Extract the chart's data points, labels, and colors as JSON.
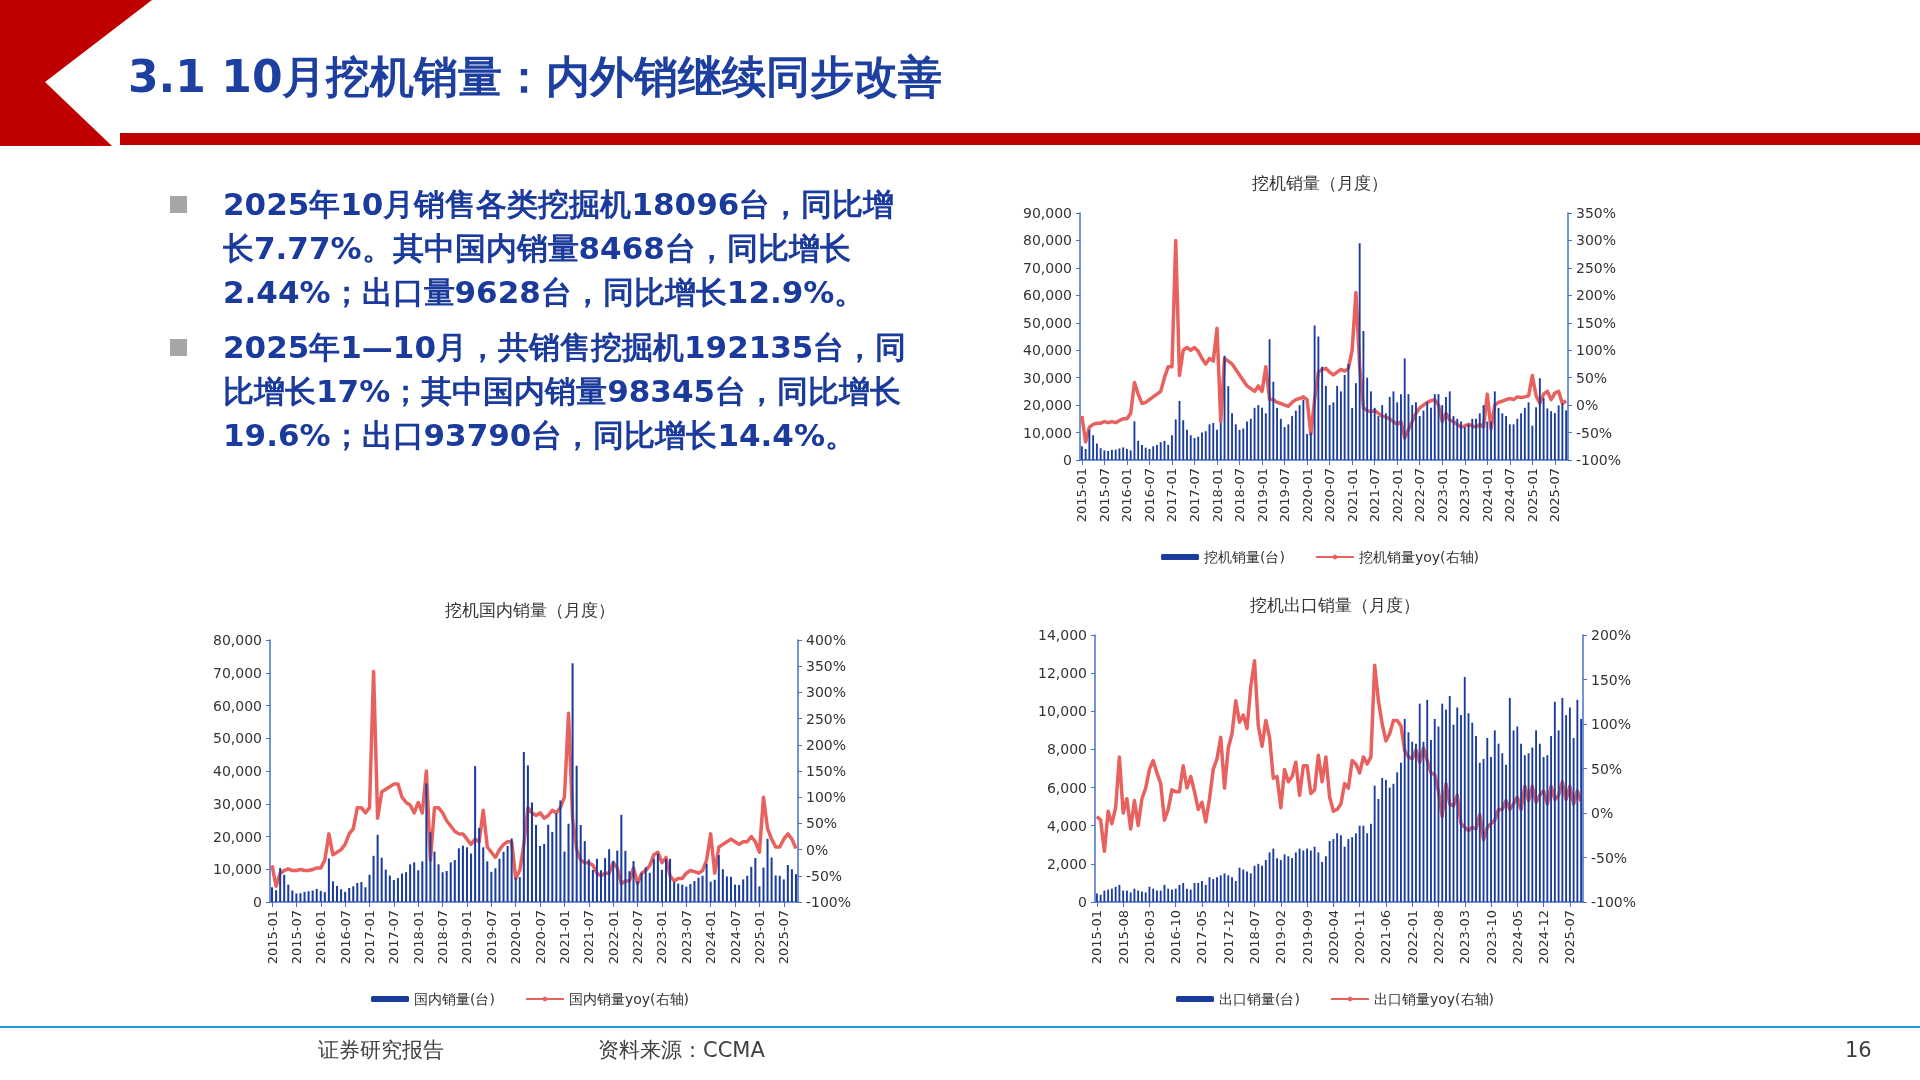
{
  "chart_data": [
    {
      "type": "other",
      "title": "3.1 10月挖机销量：内外销继续同步改善",
      "annotations": [
        "2025年10月销售各类挖掘机18096台，同比增长7.77%。其中国内销量8468台，同比增长2.44%；出口量9628台，同比增长12.9%。",
        "2025年1—10月，共销售挖掘机192135台，同比增长17%；其中国内销量98345台，同比增长19.6%；出口93790台，同比增长14.4%。",
        "证券研究报告",
        "资料来源：CCMA",
        "16"
      ]
    },
    {
      "type": "bar",
      "title": "挖机销量（月度）",
      "legend": "bottom",
      "marker": "none",
      "grid": false,
      "categories": [
        "2015-01",
        null,
        null,
        null,
        null,
        null,
        "2015-07",
        null,
        null,
        null,
        null,
        null,
        "2016-01",
        null,
        null,
        null,
        null,
        null,
        "2016-07",
        null,
        null,
        null,
        null,
        null,
        "2017-01",
        null,
        null,
        null,
        null,
        null,
        "2017-07",
        null,
        null,
        null,
        null,
        null,
        "2018-01",
        null,
        null,
        null,
        null,
        null,
        "2018-07",
        null,
        null,
        null,
        null,
        null,
        "2019-01",
        null,
        null,
        null,
        null,
        null,
        "2019-07",
        null,
        null,
        null,
        null,
        null,
        "2020-01",
        null,
        null,
        null,
        null,
        null,
        "2020-07",
        null,
        null,
        null,
        null,
        null,
        "2021-01",
        null,
        null,
        null,
        null,
        null,
        "2021-07",
        null,
        null,
        null,
        null,
        null,
        "2022-01",
        null,
        null,
        null,
        null,
        null,
        "2022-07",
        null,
        null,
        null,
        null,
        null,
        "2023-01",
        null,
        null,
        null,
        null,
        null,
        "2023-07",
        null,
        null,
        null,
        null,
        null,
        "2024-01",
        null,
        null,
        null,
        null,
        null,
        "2024-07",
        null,
        null,
        null,
        null,
        null,
        "2025-01",
        null,
        null,
        null,
        null,
        null,
        "2025-07",
        null,
        null,
        null
      ],
      "ylim": [
        0,
        90000
      ],
      "yticks": [
        {
          "value": 0,
          "label": "0"
        },
        {
          "value": 10000,
          "label": "10,000"
        },
        {
          "value": 20000,
          "label": "20,000"
        },
        {
          "value": 30000,
          "label": "30,000"
        },
        {
          "value": 40000,
          "label": "40,000"
        },
        {
          "value": 50000,
          "label": "50,000"
        },
        {
          "value": 60000,
          "label": "60,000"
        },
        {
          "value": 70000,
          "label": "70,000"
        },
        {
          "value": 80000,
          "label": "80,000"
        },
        {
          "value": 90000,
          "label": "90,000"
        }
      ],
      "y2lim": [
        -100,
        350
      ],
      "y2ticks": [
        {
          "value": -100,
          "label": "-100%"
        },
        {
          "value": -50,
          "label": "-50%"
        },
        {
          "value": 0,
          "label": "0%"
        },
        {
          "value": 50,
          "label": "50%"
        },
        {
          "value": 100,
          "label": "100%"
        },
        {
          "value": 150,
          "label": "150%"
        },
        {
          "value": 200,
          "label": "200%"
        },
        {
          "value": 250,
          "label": "250%"
        },
        {
          "value": 300,
          "label": "300%"
        },
        {
          "value": 350,
          "label": "350%"
        }
      ],
      "series": [
        {
          "name": "挖机销量(台)",
          "type": "bar",
          "color": "#1b3c9e",
          "values": [
            5000,
            4000,
            11000,
            9000,
            6000,
            4300,
            3500,
            3300,
            3700,
            3800,
            4200,
            4600,
            4000,
            3500,
            14100,
            7000,
            5500,
            4500,
            4000,
            5000,
            5500,
            6500,
            7000,
            5500,
            9000,
            14800,
            21500,
            14500,
            11000,
            9000,
            8000,
            8500,
            10000,
            10500,
            13000,
            13500,
            11000,
            13500,
            38000,
            26900,
            17000,
            13000,
            11000,
            11500,
            14000,
            15000,
            19000,
            20000,
            19000,
            17000,
            44000,
            28500,
            19000,
            15000,
            12000,
            13000,
            16000,
            18000,
            20000,
            22000,
            9500,
            10000,
            49000,
            45000,
            34000,
            27000,
            20000,
            21000,
            27000,
            25000,
            31000,
            35000,
            19000,
            28000,
            79000,
            47000,
            30000,
            25000,
            19000,
            16000,
            20000,
            17000,
            23000,
            25000,
            21000,
            24000,
            37000,
            24000,
            20000,
            21000,
            16000,
            18000,
            21000,
            19000,
            24000,
            24000,
            20000,
            23000,
            25000,
            16000,
            15000,
            14000,
            12000,
            13000,
            15000,
            15000,
            17000,
            20000,
            14000,
            14000,
            25000,
            19000,
            17000,
            16000,
            13000,
            13000,
            15000,
            17000,
            19000,
            21000,
            12500,
            19200,
            29800,
            22600,
            18800,
            17800,
            17100,
            19900,
            20600,
            18100
          ]
        },
        {
          "name": "挖机销量yoy(右轴)",
          "type": "line",
          "axis": "y2",
          "color": "#e8615e",
          "values": [
            -20,
            -67,
            -40,
            -35,
            -33,
            -33,
            -30,
            -32,
            -30,
            -32,
            -28,
            -25,
            -25,
            -15,
            41,
            20,
            3,
            5,
            10,
            15,
            20,
            25,
            50,
            70,
            70,
            300,
            54,
            100,
            105,
            100,
            105,
            98,
            85,
            75,
            85,
            80,
            140,
            -30,
            85,
            80,
            75,
            65,
            55,
            45,
            35,
            30,
            25,
            35,
            25,
            70,
            10,
            10,
            5,
            3,
            0,
            -2,
            5,
            10,
            12,
            15,
            10,
            -53,
            10,
            60,
            65,
            67,
            60,
            55,
            60,
            65,
            62,
            67,
            100,
            205,
            70,
            -5,
            -10,
            -12,
            -10,
            -15,
            -20,
            -22,
            -25,
            -30,
            -35,
            -30,
            -60,
            -45,
            -30,
            -15,
            -5,
            0,
            5,
            8,
            10,
            0,
            -30,
            -15,
            -27,
            -30,
            -35,
            -40,
            -38,
            -35,
            -38,
            -40,
            -35,
            -40,
            20,
            -43,
            0,
            5,
            7,
            10,
            12,
            10,
            15,
            14,
            15,
            17,
            54,
            17,
            3,
            20,
            25,
            10,
            22,
            25,
            3,
            8
          ]
        }
      ]
    },
    {
      "type": "bar",
      "title": "挖机国内销量（月度）",
      "legend": "bottom",
      "marker": "none",
      "grid": false,
      "categories": [
        "2015-01",
        null,
        null,
        null,
        null,
        null,
        "2015-07",
        null,
        null,
        null,
        null,
        null,
        "2016-01",
        null,
        null,
        null,
        null,
        null,
        "2016-07",
        null,
        null,
        null,
        null,
        null,
        "2017-01",
        null,
        null,
        null,
        null,
        null,
        "2017-07",
        null,
        null,
        null,
        null,
        null,
        "2018-01",
        null,
        null,
        null,
        null,
        null,
        "2018-07",
        null,
        null,
        null,
        null,
        null,
        "2019-01",
        null,
        null,
        null,
        null,
        null,
        "2019-07",
        null,
        null,
        null,
        null,
        null,
        "2020-01",
        null,
        null,
        null,
        null,
        null,
        "2020-07",
        null,
        null,
        null,
        null,
        null,
        "2021-01",
        null,
        null,
        null,
        null,
        null,
        "2021-07",
        null,
        null,
        null,
        null,
        null,
        "2022-01",
        null,
        null,
        null,
        null,
        null,
        "2022-07",
        null,
        null,
        null,
        null,
        null,
        "2023-01",
        null,
        null,
        null,
        null,
        null,
        "2023-07",
        null,
        null,
        null,
        null,
        null,
        "2024-01",
        null,
        null,
        null,
        null,
        null,
        "2024-07",
        null,
        null,
        null,
        null,
        null,
        "2025-01",
        null,
        null,
        null,
        null,
        null,
        "2025-07",
        null,
        null,
        null
      ],
      "ylim": [
        0,
        80000
      ],
      "yticks": [
        {
          "value": 0,
          "label": "0"
        },
        {
          "value": 10000,
          "label": "10,000"
        },
        {
          "value": 20000,
          "label": "20,000"
        },
        {
          "value": 30000,
          "label": "30,000"
        },
        {
          "value": 40000,
          "label": "40,000"
        },
        {
          "value": 50000,
          "label": "50,000"
        },
        {
          "value": 60000,
          "label": "60,000"
        },
        {
          "value": 70000,
          "label": "70,000"
        },
        {
          "value": 80000,
          "label": "80,000"
        }
      ],
      "y2lim": [
        -100,
        400
      ],
      "y2ticks": [
        {
          "value": -100,
          "label": "-100%"
        },
        {
          "value": -50,
          "label": "-50%"
        },
        {
          "value": 0,
          "label": "0%"
        },
        {
          "value": 50,
          "label": "50%"
        },
        {
          "value": 100,
          "label": "100%"
        },
        {
          "value": 150,
          "label": "150%"
        },
        {
          "value": 200,
          "label": "200%"
        },
        {
          "value": 250,
          "label": "250%"
        },
        {
          "value": 300,
          "label": "300%"
        },
        {
          "value": 350,
          "label": "350%"
        },
        {
          "value": 400,
          "label": "400%"
        }
      ],
      "series": [
        {
          "name": "国内销量(台)",
          "type": "bar",
          "color": "#1b3c9e",
          "values": [
            4500,
            3600,
            10400,
            8300,
            5300,
            3500,
            2600,
            2700,
            3100,
            3300,
            3500,
            4000,
            3400,
            3000,
            13300,
            6300,
            4900,
            3900,
            3100,
            4300,
            4800,
            5800,
            6100,
            4500,
            8300,
            14100,
            20500,
            13500,
            9900,
            8100,
            6700,
            7300,
            8700,
            9100,
            11500,
            12100,
            9700,
            12400,
            36200,
            21300,
            15400,
            11500,
            9100,
            9500,
            12100,
            12800,
            16400,
            17200,
            16700,
            14800,
            41500,
            22600,
            16700,
            12400,
            9200,
            10300,
            13200,
            15300,
            17100,
            19400,
            7400,
            7600,
            45800,
            41700,
            30400,
            23500,
            17100,
            17700,
            23600,
            21400,
            27000,
            31000,
            15400,
            23900,
            72900,
            41600,
            23500,
            18600,
            13000,
            9800,
            13200,
            9700,
            13400,
            16100,
            12600,
            15700,
            26600,
            15600,
            9400,
            12500,
            6400,
            8800,
            10600,
            8900,
            13200,
            14700,
            9800,
            13200,
            13200,
            6100,
            5600,
            5300,
            4700,
            5500,
            6400,
            7400,
            8000,
            11700,
            6200,
            6800,
            14300,
            10000,
            7800,
            7700,
            5300,
            5200,
            6900,
            8000,
            10700,
            13400,
            4800,
            10500,
            19300,
            13600,
            8100,
            8000,
            6900,
            11300,
            10000,
            8500
          ]
        },
        {
          "name": "国内销量yoy(右轴)",
          "type": "line",
          "axis": "y2",
          "color": "#e8615e",
          "values": [
            -30,
            -70,
            -45,
            -40,
            -37,
            -40,
            -40,
            -38,
            -40,
            -40,
            -38,
            -35,
            -35,
            -20,
            30,
            -10,
            -5,
            0,
            10,
            30,
            40,
            80,
            80,
            70,
            80,
            340,
            60,
            110,
            115,
            120,
            125,
            125,
            100,
            90,
            85,
            70,
            90,
            70,
            150,
            -20,
            80,
            80,
            70,
            55,
            45,
            35,
            30,
            30,
            20,
            10,
            20,
            15,
            75,
            5,
            -5,
            -15,
            0,
            10,
            15,
            15,
            -55,
            -40,
            10,
            80,
            70,
            65,
            70,
            60,
            65,
            75,
            70,
            80,
            100,
            260,
            60,
            0,
            -20,
            -25,
            -25,
            -30,
            -45,
            -50,
            -45,
            -45,
            -25,
            -35,
            -65,
            -60,
            -60,
            -35,
            -65,
            -45,
            -40,
            -30,
            -10,
            -5,
            -25,
            -15,
            -50,
            -60,
            -55,
            -55,
            -45,
            -40,
            -42,
            -45,
            -40,
            -20,
            30,
            -45,
            5,
            10,
            15,
            20,
            15,
            10,
            15,
            15,
            25,
            15,
            -5,
            100,
            40,
            20,
            5,
            5,
            20,
            30,
            20,
            2
          ]
        }
      ]
    },
    {
      "type": "bar",
      "title": "挖机出口销量（月度）",
      "legend": "bottom",
      "marker": "none",
      "grid": false,
      "categories": [
        "2015-01",
        null,
        null,
        null,
        null,
        null,
        null,
        "2015-08",
        null,
        null,
        null,
        null,
        null,
        null,
        "2016-03",
        null,
        null,
        null,
        null,
        null,
        null,
        "2016-10",
        null,
        null,
        null,
        null,
        null,
        null,
        "2017-05",
        null,
        null,
        null,
        null,
        null,
        null,
        "2017-12",
        null,
        null,
        null,
        null,
        null,
        null,
        "2018-07",
        null,
        null,
        null,
        null,
        null,
        null,
        "2019-02",
        null,
        null,
        null,
        null,
        null,
        null,
        "2019-09",
        null,
        null,
        null,
        null,
        null,
        null,
        "2020-04",
        null,
        null,
        null,
        null,
        null,
        null,
        "2020-11",
        null,
        null,
        null,
        null,
        null,
        null,
        "2021-06",
        null,
        null,
        null,
        null,
        null,
        null,
        "2022-01",
        null,
        null,
        null,
        null,
        null,
        null,
        "2022-08",
        null,
        null,
        null,
        null,
        null,
        null,
        "2023-03",
        null,
        null,
        null,
        null,
        null,
        null,
        "2023-10",
        null,
        null,
        null,
        null,
        null,
        null,
        "2024-05",
        null,
        null,
        null,
        null,
        null,
        null,
        "2024-12",
        null,
        null,
        null,
        null,
        null,
        null,
        "2025-07",
        null,
        null,
        null
      ],
      "ylim": [
        0,
        14000
      ],
      "yticks": [
        {
          "value": 0,
          "label": "0"
        },
        {
          "value": 2000,
          "label": "2,000"
        },
        {
          "value": 4000,
          "label": "4,000"
        },
        {
          "value": 6000,
          "label": "6,000"
        },
        {
          "value": 8000,
          "label": "8,000"
        },
        {
          "value": 10000,
          "label": "10,000"
        },
        {
          "value": 12000,
          "label": "12,000"
        },
        {
          "value": 14000,
          "label": "14,000"
        }
      ],
      "y2lim": [
        -100,
        200
      ],
      "y2ticks": [
        {
          "value": -100,
          "label": "-100%"
        },
        {
          "value": -50,
          "label": "-50%"
        },
        {
          "value": 0,
          "label": "0%"
        },
        {
          "value": 50,
          "label": "50%"
        },
        {
          "value": 100,
          "label": "100%"
        },
        {
          "value": 150,
          "label": "150%"
        },
        {
          "value": 200,
          "label": "200%"
        }
      ],
      "series": [
        {
          "name": "出口销量(台)",
          "type": "bar",
          "color": "#1b3c9e",
          "values": [
            450,
            380,
            600,
            650,
            700,
            800,
            900,
            600,
            600,
            500,
            700,
            600,
            550,
            500,
            800,
            700,
            600,
            600,
            900,
            700,
            650,
            700,
            900,
            1000,
            700,
            650,
            1000,
            1000,
            1100,
            900,
            1300,
            1200,
            1300,
            1400,
            1500,
            1400,
            1300,
            1100,
            1800,
            1700,
            1600,
            1500,
            1900,
            2000,
            1900,
            2200,
            2600,
            2800,
            2300,
            2200,
            2500,
            2400,
            2300,
            2600,
            2800,
            2700,
            2800,
            2700,
            2900,
            2600,
            2100,
            2400,
            3200,
            3300,
            3600,
            3500,
            2900,
            3300,
            3400,
            3600,
            4000,
            4000,
            3600,
            4100,
            6100,
            5400,
            6500,
            6400,
            6000,
            6200,
            6800,
            7300,
            9600,
            8900,
            8400,
            8300,
            10400,
            8400,
            10600,
            8500,
            9600,
            9200,
            10400,
            10100,
            10800,
            9300,
            10200,
            9800,
            11800,
            9900,
            9400,
            8700,
            7300,
            7500,
            8600,
            7600,
            9000,
            8300,
            7800,
            7200,
            10700,
            9000,
            9200,
            8300,
            7700,
            7800,
            8100,
            9000,
            8300,
            7600,
            7700,
            8700,
            10500,
            9000,
            10700,
            9800,
            10200,
            8600,
            10600,
            9600
          ]
        },
        {
          "name": "出口销量yoy(右轴)",
          "type": "line",
          "axis": "y2",
          "color": "#e8615e",
          "values": [
            -4,
            -8,
            -43,
            2,
            -12,
            6,
            63,
            0,
            16,
            -18,
            14,
            -14,
            16,
            28,
            49,
            59,
            45,
            33,
            -8,
            4,
            26,
            24,
            24,
            53,
            28,
            41,
            24,
            4,
            12,
            -10,
            16,
            49,
            61,
            85,
            28,
            73,
            89,
            126,
            102,
            110,
            95,
            142,
            171,
            98,
            75,
            104,
            85,
            39,
            41,
            6,
            49,
            35,
            41,
            57,
            20,
            53,
            53,
            22,
            26,
            65,
            35,
            63,
            18,
            2,
            4,
            10,
            33,
            28,
            59,
            55,
            45,
            63,
            55,
            63,
            166,
            126,
            100,
            81,
            89,
            104,
            104,
            98,
            70,
            63,
            61,
            71,
            57,
            73,
            59,
            45,
            43,
            24,
            -4,
            33,
            10,
            8,
            20,
            -12,
            -16,
            -20,
            -16,
            -18,
            -2,
            -30,
            -16,
            -12,
            -8,
            4,
            4,
            14,
            4,
            10,
            18,
            4,
            30,
            14,
            30,
            12,
            20,
            25,
            10,
            30,
            15,
            20,
            35,
            15,
            30,
            10,
            25,
            13
          ]
        }
      ]
    }
  ]
}
